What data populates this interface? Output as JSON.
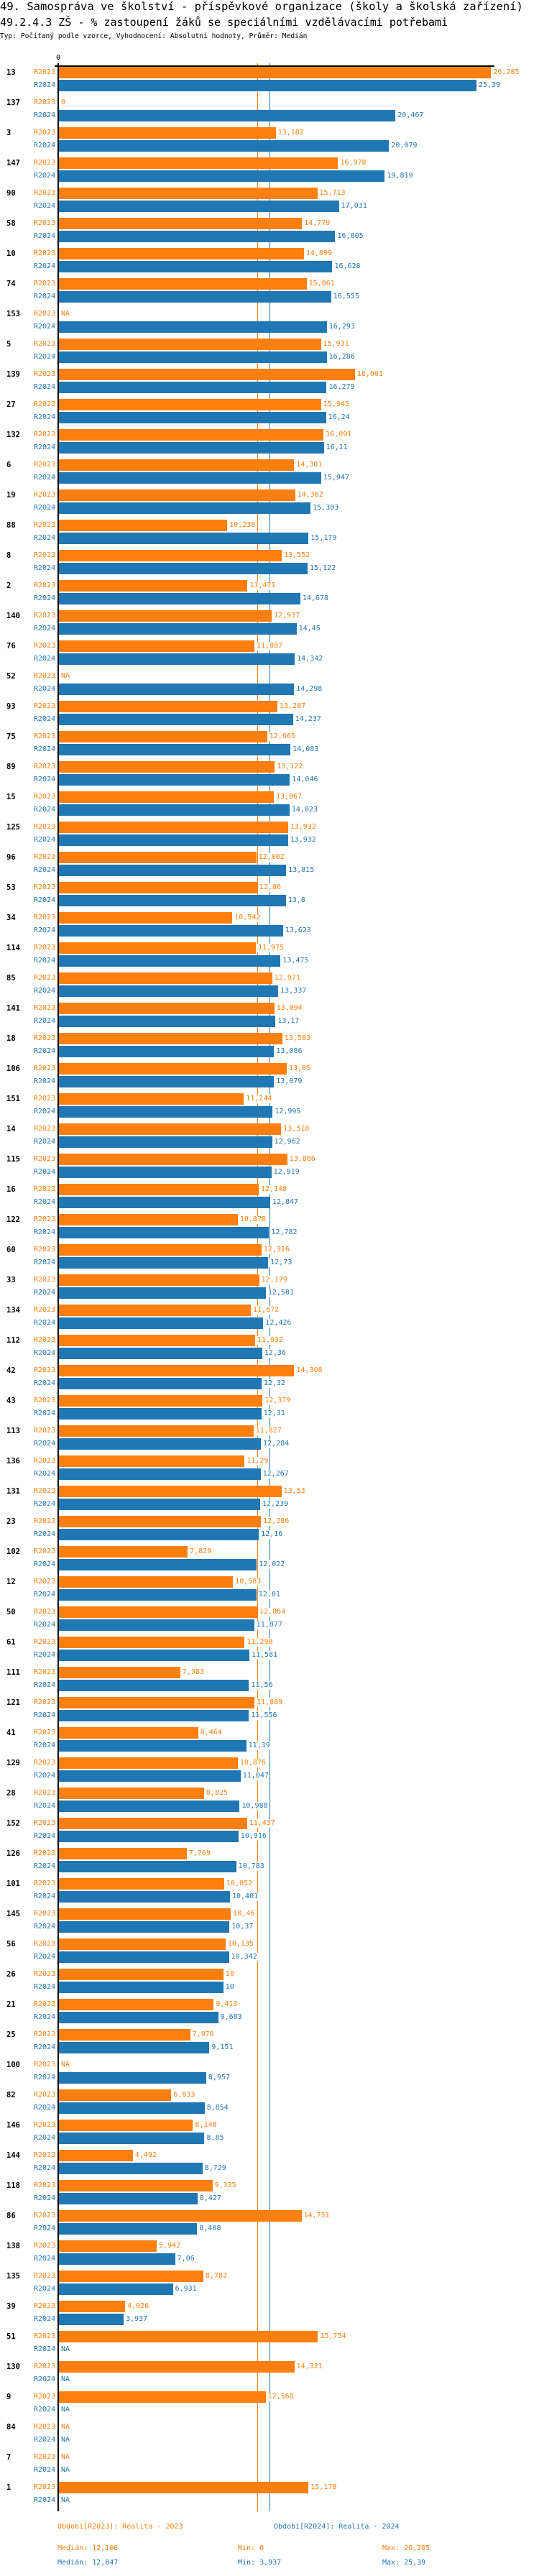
{
  "header": {
    "title": "49. Samospráva ve školství - příspěvkové organizace (školy a školská zařízení)",
    "subtitle": "49.2.4.3 ZŠ - % zastoupení žáků se speciálními vzdělávacími potřebami",
    "info": "Typ: Počítaný podle vzorce, Vyhodnocení: Absolutní hodnoty, Průměr: Medián"
  },
  "colors": {
    "r2023": "#ff7f0e",
    "r2024": "#1f77b4",
    "axis": "#000000"
  },
  "chart_data": {
    "type": "bar",
    "orientation": "horizontal",
    "axis_tick_label": "0",
    "xlim": [
      0,
      26.285
    ],
    "na_label": "NA",
    "categories": [
      "13",
      "137",
      "3",
      "147",
      "90",
      "58",
      "10",
      "74",
      "153",
      "5",
      "139",
      "27",
      "132",
      "6",
      "19",
      "88",
      "8",
      "2",
      "140",
      "76",
      "52",
      "93",
      "75",
      "89",
      "15",
      "125",
      "96",
      "53",
      "34",
      "114",
      "85",
      "141",
      "18",
      "106",
      "151",
      "14",
      "115",
      "16",
      "122",
      "60",
      "33",
      "134",
      "112",
      "42",
      "43",
      "113",
      "136",
      "131",
      "23",
      "102",
      "12",
      "50",
      "61",
      "111",
      "121",
      "41",
      "129",
      "28",
      "152",
      "126",
      "101",
      "145",
      "56",
      "26",
      "21",
      "25",
      "100",
      "82",
      "146",
      "144",
      "118",
      "86",
      "138",
      "135",
      "39",
      "51",
      "130",
      "9",
      "84",
      "7",
      "1"
    ],
    "series": [
      {
        "name": "R2023",
        "values": [
          26.285,
          0,
          13.182,
          16.978,
          15.713,
          14.779,
          14.899,
          15.061,
          null,
          15.931,
          18.001,
          15.945,
          16.091,
          14.301,
          14.362,
          10.236,
          13.552,
          11.471,
          12.937,
          11.887,
          null,
          13.287,
          12.665,
          13.122,
          13.067,
          13.932,
          12.002,
          12.06,
          10.542,
          11.975,
          12.971,
          13.094,
          13.583,
          13.85,
          11.244,
          13.518,
          13.886,
          12.148,
          10.878,
          12.316,
          12.179,
          11.672,
          11.932,
          14.308,
          12.379,
          11.827,
          11.29,
          13.53,
          12.286,
          7.829,
          10.583,
          12.064,
          11.298,
          7.383,
          11.889,
          8.464,
          10.876,
          8.825,
          11.437,
          7.769,
          10.052,
          10.46,
          10.135,
          10,
          9.413,
          7.978,
          null,
          6.833,
          8.148,
          4.492,
          9.335,
          14.751,
          5.942,
          8.782,
          4.026,
          15.754,
          14.321,
          12.568,
          null,
          null,
          15.178
        ],
        "legend": "Období[R2023]: Realita - 2023",
        "median": 12.106,
        "median_label": "Medián: 12,106",
        "min_label": "Min: 0",
        "max_label": "Max: 26,285"
      },
      {
        "name": "R2024",
        "values": [
          25.39,
          20.467,
          20.079,
          19.819,
          17.031,
          16.805,
          16.628,
          16.555,
          16.293,
          16.286,
          16.279,
          16.24,
          16.11,
          15.947,
          15.303,
          15.179,
          15.122,
          14.678,
          14.45,
          14.342,
          14.298,
          14.237,
          14.083,
          14.046,
          14.023,
          13.932,
          13.815,
          13.8,
          13.623,
          13.475,
          13.337,
          13.17,
          13.086,
          13.079,
          12.995,
          12.962,
          12.919,
          12.847,
          12.782,
          12.73,
          12.581,
          12.426,
          12.36,
          12.32,
          12.31,
          12.284,
          12.267,
          12.239,
          12.16,
          12.022,
          12.01,
          11.877,
          11.581,
          11.56,
          11.556,
          11.39,
          11.047,
          10.988,
          10.916,
          10.783,
          10.401,
          10.37,
          10.342,
          10,
          9.683,
          9.151,
          8.957,
          8.854,
          8.85,
          8.729,
          8.427,
          8.408,
          7.06,
          6.931,
          3.937,
          null,
          null,
          null,
          null,
          null,
          null
        ],
        "legend": "Období[R2024]: Realita - 2024",
        "median": 12.847,
        "median_label": "Medián: 12,847",
        "min_label": "Min: 3,937",
        "max_label": "Max: 25,39"
      }
    ]
  }
}
